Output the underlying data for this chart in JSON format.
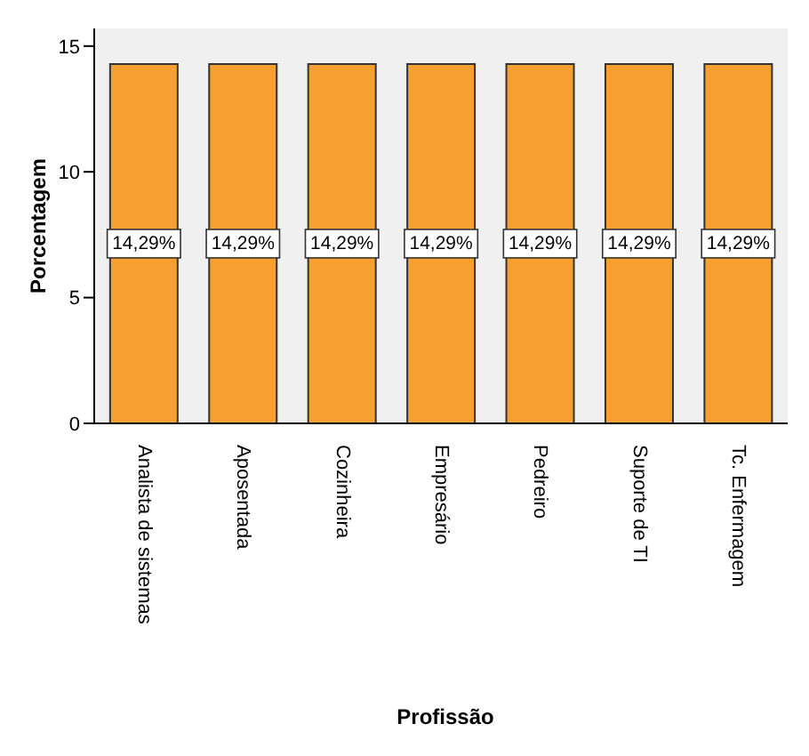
{
  "chart_data": {
    "type": "bar",
    "xlabel": "Profissão",
    "ylabel": "Porcentagem",
    "categories": [
      "Analista de sistemas",
      "Aposentada",
      "Cozinheira",
      "Empresário",
      "Pedreiro",
      "Suporte de TI",
      "Tc. Enfermagem"
    ],
    "values": [
      14.29,
      14.29,
      14.29,
      14.29,
      14.29,
      14.29,
      14.29
    ],
    "value_labels": [
      "14,29%",
      "14,29%",
      "14,29%",
      "14,29%",
      "14,29%",
      "14,29%",
      "14,29%"
    ],
    "color": "#f5a030",
    "ylim": [
      0,
      15.7
    ],
    "yticks": [
      0,
      5,
      10,
      15
    ],
    "grid": false
  }
}
